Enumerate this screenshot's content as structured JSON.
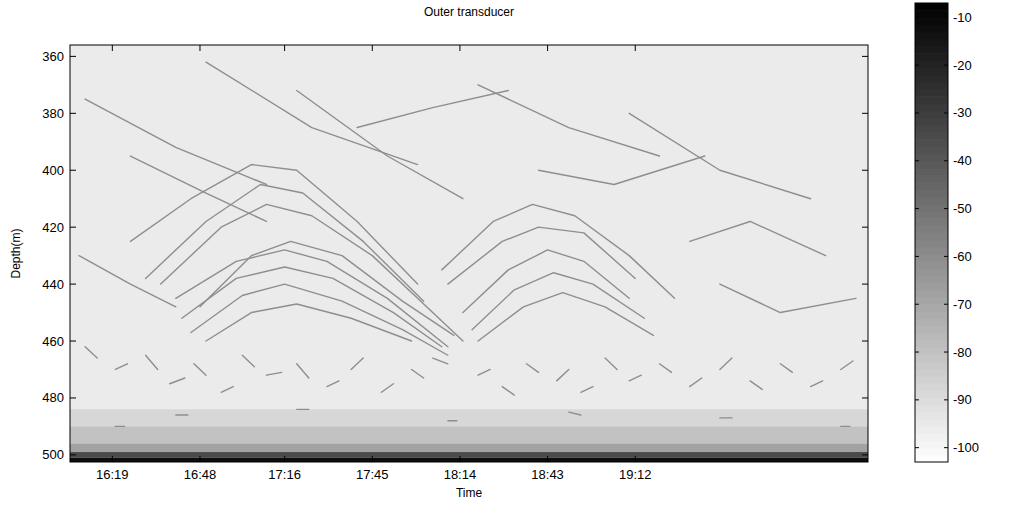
{
  "chart_data": {
    "type": "echogram",
    "title": "Outer transducer",
    "x_label": "Time",
    "y_label": "Depth(m)",
    "xlim": [
      965,
      1229
    ],
    "xticks": [
      {
        "value": 979,
        "label": "16:19"
      },
      {
        "value": 1008,
        "label": "16:48"
      },
      {
        "value": 1036,
        "label": "17:16"
      },
      {
        "value": 1065,
        "label": "17:45"
      },
      {
        "value": 1094,
        "label": "18:14"
      },
      {
        "value": 1123,
        "label": "18:43"
      },
      {
        "value": 1152,
        "label": "19:12"
      }
    ],
    "ylim": [
      356,
      502.5
    ],
    "yticks": [
      360,
      380,
      400,
      420,
      440,
      460,
      480,
      500
    ],
    "color": "#8e8e8e",
    "colorbar": {
      "range": [
        -103,
        -7
      ],
      "ticks": [
        -10,
        -20,
        -30,
        -40,
        -50,
        -60,
        -70,
        -80,
        -90,
        -100
      ]
    },
    "bands": [
      {
        "top": 484,
        "bottom": 490,
        "level": -88
      },
      {
        "top": 490,
        "bottom": 496,
        "level": -80
      },
      {
        "top": 496,
        "bottom": 499,
        "level": -68
      },
      {
        "top": 499,
        "bottom": 501,
        "level": -35
      },
      {
        "top": 501,
        "bottom": 502.5,
        "level": -12
      }
    ],
    "series": [
      {
        "x": [
          1000,
          1020,
          1036,
          1050,
          1070,
          1090
        ],
        "y": [
          445,
          432,
          428,
          432,
          445,
          462
        ]
      },
      {
        "x": [
          1002,
          1020,
          1036,
          1052,
          1072,
          1088
        ],
        "y": [
          452,
          438,
          434,
          438,
          450,
          462
        ]
      },
      {
        "x": [
          1005,
          1022,
          1036,
          1055,
          1075,
          1090
        ],
        "y": [
          457,
          444,
          440,
          446,
          456,
          465
        ]
      },
      {
        "x": [
          1010,
          1025,
          1040,
          1058,
          1078
        ],
        "y": [
          460,
          450,
          447,
          452,
          460
        ]
      },
      {
        "x": [
          995,
          1015,
          1030,
          1045,
          1065,
          1085,
          1095
        ],
        "y": [
          440,
          420,
          412,
          416,
          430,
          450,
          460
        ]
      },
      {
        "x": [
          990,
          1010,
          1028,
          1042,
          1062,
          1082
        ],
        "y": [
          438,
          418,
          405,
          408,
          425,
          446
        ]
      },
      {
        "x": [
          985,
          1005,
          1025,
          1040,
          1060,
          1080
        ],
        "y": [
          425,
          410,
          398,
          400,
          418,
          440
        ]
      },
      {
        "x": [
          1008,
          1025,
          1038,
          1055,
          1075,
          1092
        ],
        "y": [
          448,
          430,
          425,
          430,
          446,
          458
        ]
      },
      {
        "x": [
          1095,
          1110,
          1123,
          1135,
          1150
        ],
        "y": [
          450,
          435,
          428,
          432,
          445
        ]
      },
      {
        "x": [
          1098,
          1112,
          1125,
          1138,
          1155
        ],
        "y": [
          456,
          442,
          436,
          440,
          452
        ]
      },
      {
        "x": [
          1090,
          1108,
          1120,
          1135,
          1152
        ],
        "y": [
          440,
          425,
          420,
          422,
          438
        ]
      },
      {
        "x": [
          1100,
          1115,
          1128,
          1142,
          1158
        ],
        "y": [
          460,
          448,
          443,
          448,
          458
        ]
      },
      {
        "x": [
          1088,
          1105,
          1118,
          1132,
          1150,
          1165
        ],
        "y": [
          435,
          418,
          412,
          416,
          430,
          445
        ]
      },
      {
        "x": [
          970,
          1000,
          1030
        ],
        "y": [
          375,
          392,
          405
        ]
      },
      {
        "x": [
          1040,
          1070,
          1095
        ],
        "y": [
          372,
          395,
          410
        ]
      },
      {
        "x": [
          1010,
          1045,
          1080
        ],
        "y": [
          362,
          385,
          398
        ]
      },
      {
        "x": [
          1100,
          1130,
          1160
        ],
        "y": [
          370,
          385,
          395
        ]
      },
      {
        "x": [
          1150,
          1180,
          1210
        ],
        "y": [
          380,
          400,
          410
        ]
      },
      {
        "x": [
          985,
          1010,
          1030
        ],
        "y": [
          395,
          408,
          418
        ]
      },
      {
        "x": [
          1060,
          1085,
          1110
        ],
        "y": [
          385,
          378,
          372
        ]
      },
      {
        "x": [
          1170,
          1190,
          1215
        ],
        "y": [
          425,
          418,
          430
        ]
      },
      {
        "x": [
          1180,
          1200,
          1225
        ],
        "y": [
          440,
          450,
          445
        ]
      },
      {
        "x": [
          968,
          985,
          1000
        ],
        "y": [
          430,
          440,
          448
        ]
      },
      {
        "x": [
          1120,
          1145,
          1175
        ],
        "y": [
          400,
          405,
          395
        ]
      },
      {
        "x": [
          970,
          974
        ],
        "y": [
          462,
          466
        ]
      },
      {
        "x": [
          980,
          984
        ],
        "y": [
          470,
          468
        ]
      },
      {
        "x": [
          990,
          994
        ],
        "y": [
          465,
          470
        ]
      },
      {
        "x": [
          998,
          1003
        ],
        "y": [
          475,
          473
        ]
      },
      {
        "x": [
          1006,
          1010
        ],
        "y": [
          468,
          472
        ]
      },
      {
        "x": [
          1015,
          1019
        ],
        "y": [
          478,
          476
        ]
      },
      {
        "x": [
          1022,
          1026
        ],
        "y": [
          465,
          469
        ]
      },
      {
        "x": [
          1030,
          1035
        ],
        "y": [
          472,
          471
        ]
      },
      {
        "x": [
          1040,
          1044
        ],
        "y": [
          468,
          473
        ]
      },
      {
        "x": [
          1050,
          1054
        ],
        "y": [
          476,
          474
        ]
      },
      {
        "x": [
          1058,
          1062
        ],
        "y": [
          470,
          466
        ]
      },
      {
        "x": [
          1068,
          1072
        ],
        "y": [
          478,
          475
        ]
      },
      {
        "x": [
          1078,
          1082
        ],
        "y": [
          470,
          473
        ]
      },
      {
        "x": [
          1085,
          1090
        ],
        "y": [
          466,
          468
        ]
      },
      {
        "x": [
          1100,
          1104
        ],
        "y": [
          472,
          470
        ]
      },
      {
        "x": [
          1108,
          1112
        ],
        "y": [
          476,
          479
        ]
      },
      {
        "x": [
          1116,
          1120
        ],
        "y": [
          468,
          471
        ]
      },
      {
        "x": [
          1126,
          1130
        ],
        "y": [
          474,
          470
        ]
      },
      {
        "x": [
          1134,
          1138
        ],
        "y": [
          478,
          476
        ]
      },
      {
        "x": [
          1142,
          1146
        ],
        "y": [
          466,
          470
        ]
      },
      {
        "x": [
          1150,
          1154
        ],
        "y": [
          474,
          472
        ]
      },
      {
        "x": [
          1160,
          1164
        ],
        "y": [
          468,
          471
        ]
      },
      {
        "x": [
          1170,
          1174
        ],
        "y": [
          476,
          473
        ]
      },
      {
        "x": [
          1180,
          1184
        ],
        "y": [
          470,
          466
        ]
      },
      {
        "x": [
          1190,
          1194
        ],
        "y": [
          474,
          477
        ]
      },
      {
        "x": [
          1200,
          1204
        ],
        "y": [
          468,
          471
        ]
      },
      {
        "x": [
          1210,
          1214
        ],
        "y": [
          476,
          474
        ]
      },
      {
        "x": [
          1220,
          1224
        ],
        "y": [
          470,
          467
        ]
      },
      {
        "x": [
          1000,
          1004
        ],
        "y": [
          486,
          486
        ]
      },
      {
        "x": [
          1040,
          1044
        ],
        "y": [
          484,
          484
        ]
      },
      {
        "x": [
          1090,
          1093
        ],
        "y": [
          488,
          488
        ]
      },
      {
        "x": [
          1130,
          1134
        ],
        "y": [
          485,
          486
        ]
      },
      {
        "x": [
          1180,
          1184
        ],
        "y": [
          487,
          487
        ]
      },
      {
        "x": [
          1220,
          1223
        ],
        "y": [
          490,
          490
        ]
      },
      {
        "x": [
          980,
          983
        ],
        "y": [
          490,
          490
        ]
      }
    ]
  }
}
